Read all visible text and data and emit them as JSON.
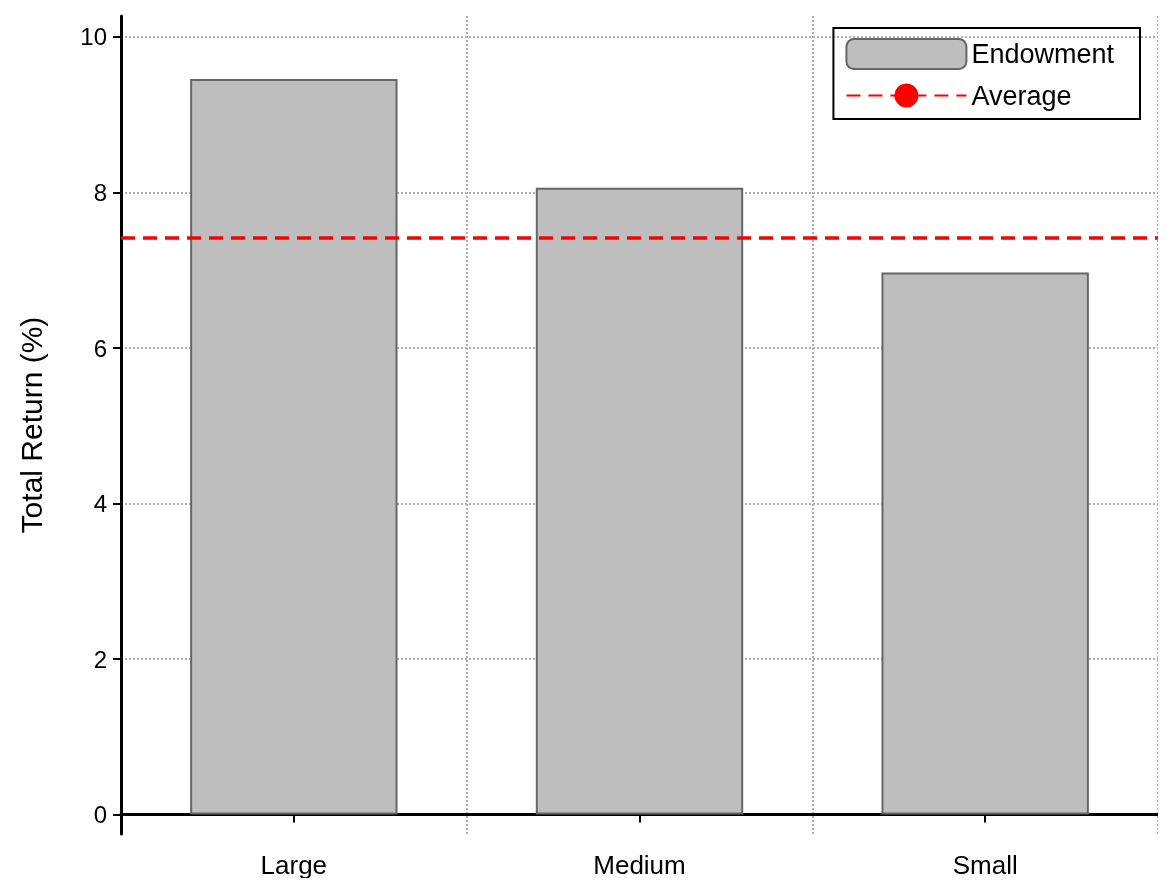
{
  "chart_data": {
    "type": "bar",
    "ylabel": "Total Return (%)",
    "categories": [
      "Large",
      "Medium",
      "Small"
    ],
    "series": [
      {
        "name": "Endowment",
        "color": "#bebebe",
        "values": [
          9.46,
          8.06,
          6.97
        ]
      }
    ],
    "ylim": [
      -0.25,
      10.27
    ],
    "yticks": [
      0,
      2,
      4,
      6,
      8,
      10
    ],
    "ref_lines": [
      {
        "axis": "y",
        "value": 7.42,
        "label": "Average",
        "color": "#ff0000",
        "line_style": "dashed"
      }
    ],
    "grid": true,
    "legend": "top right"
  }
}
